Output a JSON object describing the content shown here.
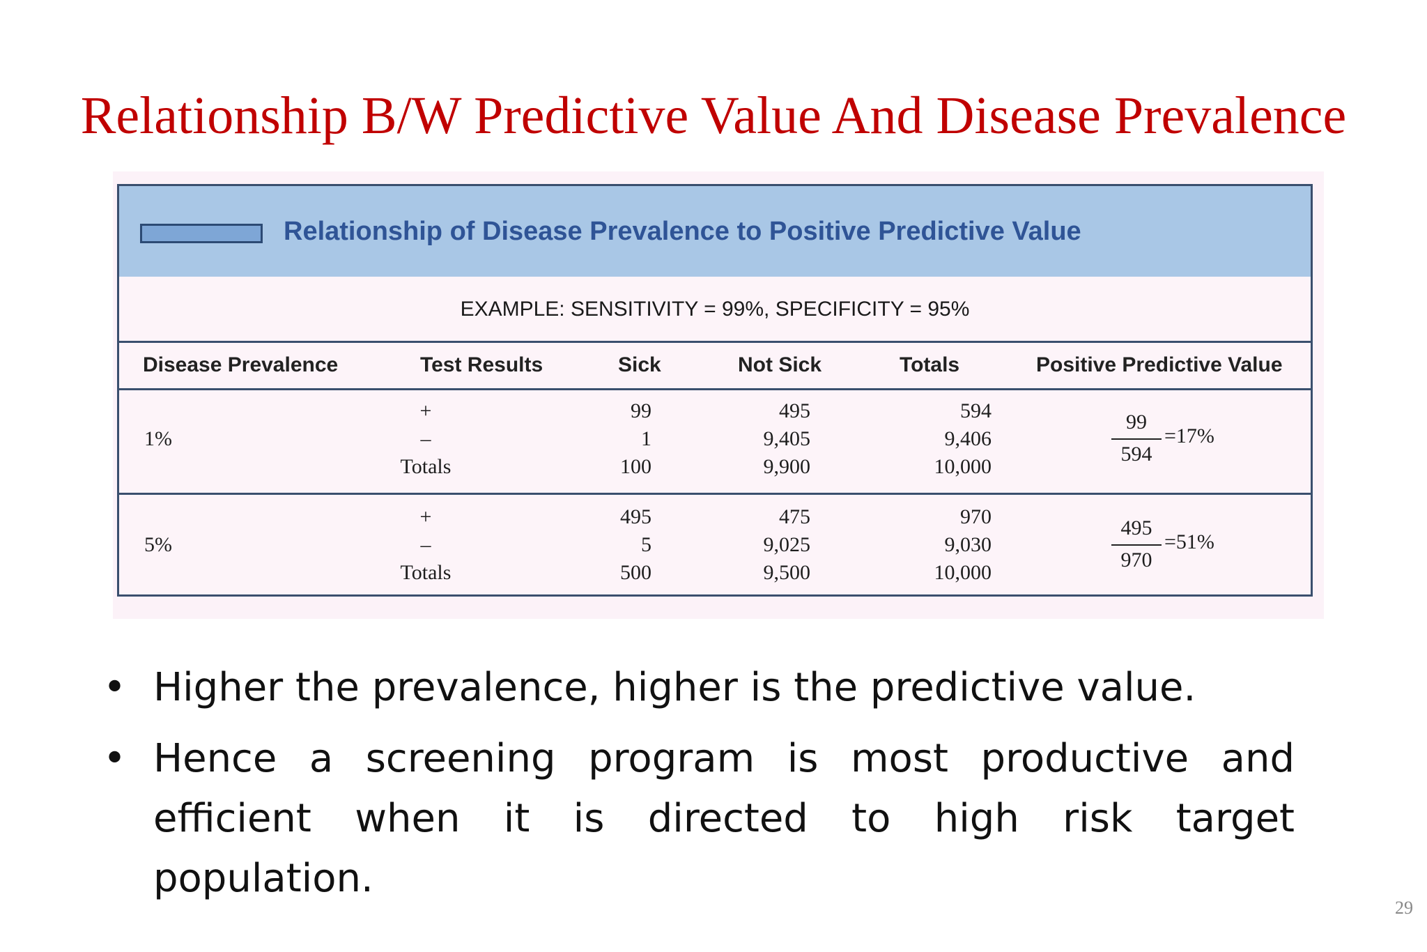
{
  "slide": {
    "title": "Relationship B/W Predictive Value And Disease Prevalence",
    "page_number": "29"
  },
  "figure": {
    "heading": "Relationship of Disease Prevalence to Positive Predictive Value",
    "example": "EXAMPLE:  SENSITIVITY = 99%,  SPECIFICITY = 95%",
    "columns": [
      "Disease Prevalence",
      "Test Results",
      "Sick",
      "Not Sick",
      "Totals",
      "Positive Predictive Value"
    ],
    "groups": [
      {
        "prevalence": "1%",
        "rows": [
          {
            "test": "+",
            "sick": "99",
            "not_sick": "495",
            "totals": "594"
          },
          {
            "test": "–",
            "sick": "1",
            "not_sick": "9,405",
            "totals": "9,406"
          },
          {
            "test": "Totals",
            "sick": "100",
            "not_sick": "9,900",
            "totals": "10,000"
          }
        ],
        "ppv": {
          "numerator": "99",
          "denominator": "594",
          "result": "=17%"
        }
      },
      {
        "prevalence": "5%",
        "rows": [
          {
            "test": "+",
            "sick": "495",
            "not_sick": "475",
            "totals": "970"
          },
          {
            "test": "–",
            "sick": "5",
            "not_sick": "9,025",
            "totals": "9,030"
          },
          {
            "test": "Totals",
            "sick": "500",
            "not_sick": "9,500",
            "totals": "10,000"
          }
        ],
        "ppv": {
          "numerator": "495",
          "denominator": "970",
          "result": "=51%"
        }
      }
    ]
  },
  "bullets": [
    {
      "lines": [
        "Higher the prevalence, higher is the predictive value."
      ]
    },
    {
      "lines": [
        "Hence a screening program is most productive and",
        "efficient when it is directed to high risk target",
        "population."
      ]
    }
  ]
}
